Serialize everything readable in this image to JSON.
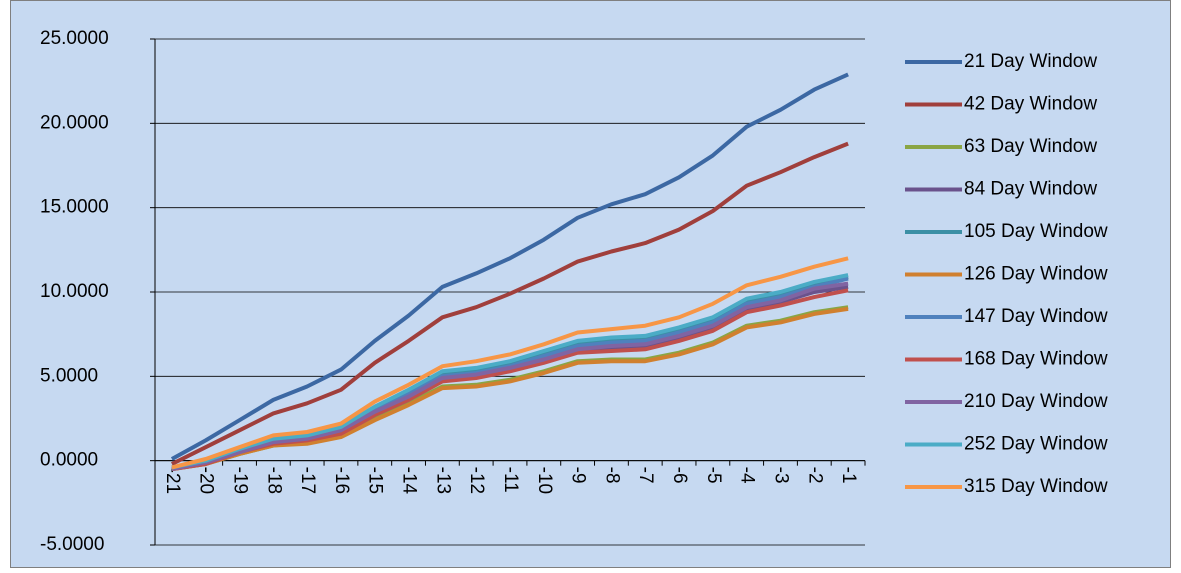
{
  "chart_data": {
    "type": "line",
    "categories": [
      "-21",
      "-20",
      "-19",
      "-18",
      "-17",
      "-16",
      "-15",
      "-14",
      "-13",
      "-12",
      "-11",
      "-10",
      "-9",
      "-8",
      "-7",
      "-6",
      "-5",
      "-4",
      "-3",
      "-2",
      "-1"
    ],
    "ylim": [
      -5,
      25
    ],
    "yticks": [
      {
        "value": -5,
        "label": "-5.0000"
      },
      {
        "value": 0,
        "label": "0.0000"
      },
      {
        "value": 5,
        "label": "5.0000"
      },
      {
        "value": 10,
        "label": "10.0000"
      },
      {
        "value": 15,
        "label": "15.0000"
      },
      {
        "value": 20,
        "label": "20.0000"
      },
      {
        "value": 25,
        "label": "25.0000"
      }
    ],
    "grid": true,
    "legend": "right",
    "series": [
      {
        "name": "21 Day Window",
        "color": "#3c68a3",
        "values": [
          0.1,
          1.2,
          2.4,
          3.6,
          4.4,
          5.4,
          7.1,
          8.6,
          10.3,
          11.1,
          12.0,
          13.1,
          14.4,
          15.2,
          15.8,
          16.8,
          18.1,
          19.8,
          20.8,
          22.0,
          22.9
        ]
      },
      {
        "name": "42 Day Window",
        "color": "#a03f3c",
        "values": [
          -0.2,
          0.8,
          1.8,
          2.8,
          3.4,
          4.2,
          5.8,
          7.1,
          8.5,
          9.1,
          9.9,
          10.8,
          11.8,
          12.4,
          12.9,
          13.7,
          14.8,
          16.3,
          17.1,
          18.0,
          18.8
        ]
      },
      {
        "name": "63 Day Window",
        "color": "#8aa544",
        "values": [
          -0.5,
          -0.2,
          0.4,
          0.9,
          1.1,
          1.5,
          2.5,
          3.4,
          4.4,
          4.5,
          4.8,
          5.3,
          5.9,
          6.0,
          6.0,
          6.4,
          7.0,
          8.0,
          8.3,
          8.8,
          9.1
        ]
      },
      {
        "name": "84 Day Window",
        "color": "#6a528c",
        "values": [
          -0.5,
          -0.1,
          0.5,
          1.1,
          1.2,
          1.7,
          2.8,
          3.7,
          4.8,
          5.0,
          5.4,
          5.9,
          6.5,
          6.7,
          6.8,
          7.3,
          7.9,
          9.0,
          9.4,
          10.0,
          10.3
        ]
      },
      {
        "name": "105 Day Window",
        "color": "#3b8fa5",
        "values": [
          -0.4,
          -0.1,
          0.6,
          1.2,
          1.4,
          1.9,
          3.0,
          4.0,
          5.1,
          5.3,
          5.7,
          6.3,
          6.9,
          7.1,
          7.2,
          7.7,
          8.3,
          9.4,
          9.8,
          10.4,
          10.9
        ]
      },
      {
        "name": "126 Day Window",
        "color": "#d0802f",
        "values": [
          -0.5,
          -0.2,
          0.4,
          0.9,
          1.0,
          1.4,
          2.4,
          3.3,
          4.3,
          4.4,
          4.7,
          5.2,
          5.8,
          5.9,
          5.9,
          6.3,
          6.9,
          7.9,
          8.2,
          8.7,
          9.0
        ]
      },
      {
        "name": "147 Day Window",
        "color": "#4f81bd",
        "values": [
          -0.4,
          -0.1,
          0.6,
          1.2,
          1.4,
          1.9,
          3.0,
          4.0,
          5.0,
          5.2,
          5.6,
          6.2,
          6.8,
          7.0,
          7.1,
          7.6,
          8.2,
          9.3,
          9.7,
          10.3,
          10.8
        ]
      },
      {
        "name": "168 Day Window",
        "color": "#c0504d",
        "values": [
          -0.5,
          -0.2,
          0.5,
          1.0,
          1.2,
          1.6,
          2.7,
          3.6,
          4.7,
          4.9,
          5.3,
          5.8,
          6.4,
          6.5,
          6.6,
          7.1,
          7.7,
          8.8,
          9.2,
          9.7,
          10.1
        ]
      },
      {
        "name": "210 Day Window",
        "color": "#8064a2",
        "values": [
          -0.5,
          -0.1,
          0.5,
          1.1,
          1.3,
          1.8,
          2.9,
          3.8,
          4.9,
          5.1,
          5.5,
          6.0,
          6.6,
          6.8,
          6.9,
          7.4,
          8.0,
          9.1,
          9.5,
          10.2,
          10.5
        ]
      },
      {
        "name": "252 Day Window",
        "color": "#4bacc6",
        "values": [
          -0.4,
          0.0,
          0.7,
          1.3,
          1.5,
          2.0,
          3.2,
          4.2,
          5.3,
          5.5,
          5.9,
          6.5,
          7.1,
          7.3,
          7.4,
          7.9,
          8.5,
          9.6,
          10.0,
          10.6,
          11.0
        ]
      },
      {
        "name": "315 Day Window",
        "color": "#f79646",
        "values": [
          -0.4,
          0.1,
          0.8,
          1.5,
          1.7,
          2.2,
          3.5,
          4.5,
          5.6,
          5.9,
          6.3,
          6.9,
          7.6,
          7.8,
          8.0,
          8.5,
          9.3,
          10.4,
          10.9,
          11.5,
          12.0
        ]
      }
    ]
  }
}
